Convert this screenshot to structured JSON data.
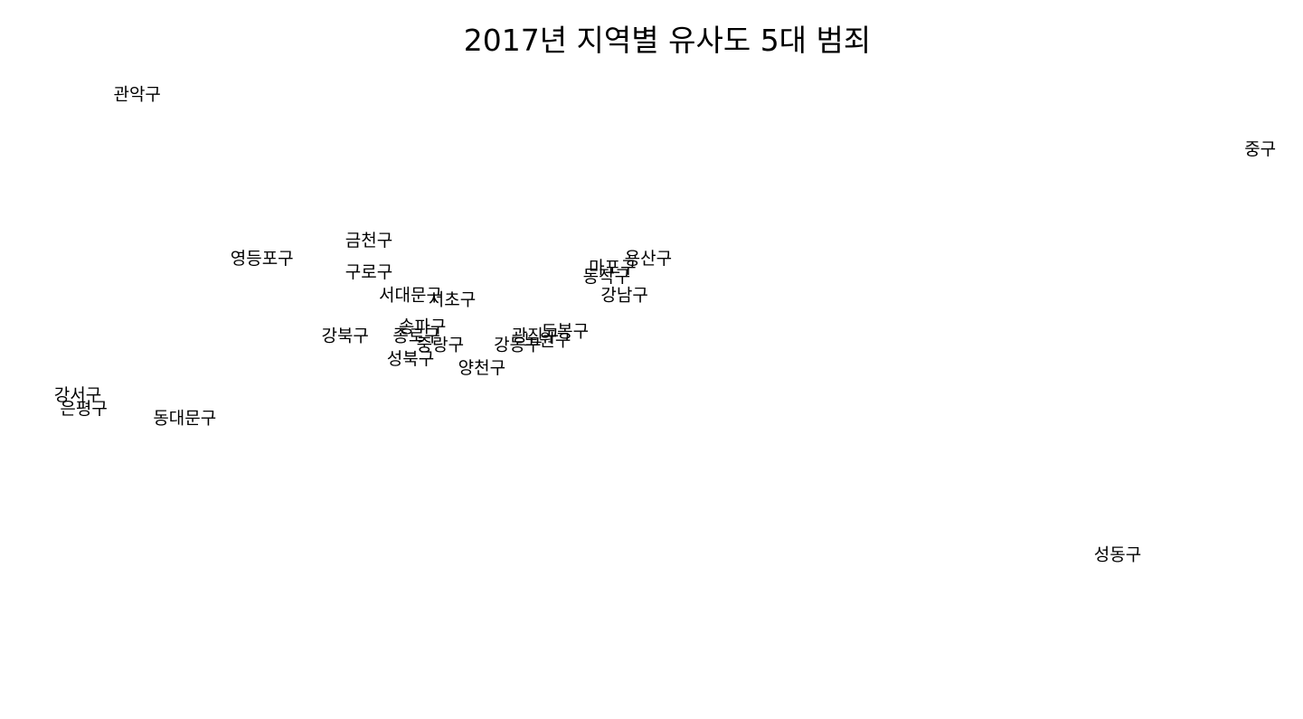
{
  "chart_data": {
    "type": "scatter",
    "title": "2017년 지역별 유사도 5대 범죄",
    "xlabel": "",
    "ylabel": "",
    "grid": false,
    "axes_visible": false,
    "xlim": [
      -0.9,
      1.2
    ],
    "ylim": [
      -0.8,
      0.6
    ],
    "points": [
      {
        "label": "관악구",
        "x": -0.73,
        "y": 0.54
      },
      {
        "label": "중구",
        "x": 1.16,
        "y": 0.42
      },
      {
        "label": "금천구",
        "x": -0.34,
        "y": 0.22
      },
      {
        "label": "영등포구",
        "x": -0.52,
        "y": 0.18
      },
      {
        "label": "용산구",
        "x": 0.13,
        "y": 0.18
      },
      {
        "label": "마포구",
        "x": 0.07,
        "y": 0.16
      },
      {
        "label": "구로구",
        "x": -0.34,
        "y": 0.15
      },
      {
        "label": "동작구",
        "x": 0.06,
        "y": 0.14
      },
      {
        "label": "강남구",
        "x": 0.09,
        "y": 0.1
      },
      {
        "label": "서대문구",
        "x": -0.27,
        "y": 0.1
      },
      {
        "label": "서초구",
        "x": -0.2,
        "y": 0.09
      },
      {
        "label": "송파구",
        "x": -0.25,
        "y": 0.03
      },
      {
        "label": "도봉구",
        "x": -0.01,
        "y": 0.02
      },
      {
        "label": "강북구",
        "x": -0.38,
        "y": 0.01
      },
      {
        "label": "종로구",
        "x": -0.26,
        "y": 0.01
      },
      {
        "label": "광진구",
        "x": -0.06,
        "y": 0.01
      },
      {
        "label": "노원구",
        "x": -0.04,
        "y": 0.0
      },
      {
        "label": "중랑구",
        "x": -0.22,
        "y": -0.01
      },
      {
        "label": "강동구",
        "x": -0.09,
        "y": -0.01
      },
      {
        "label": "성북구",
        "x": -0.27,
        "y": -0.04
      },
      {
        "label": "양천구",
        "x": -0.15,
        "y": -0.06
      },
      {
        "label": "강서구",
        "x": -0.83,
        "y": -0.12
      },
      {
        "label": "은평구",
        "x": -0.82,
        "y": -0.15
      },
      {
        "label": "동대문구",
        "x": -0.65,
        "y": -0.17
      },
      {
        "label": "성동구",
        "x": 0.92,
        "y": -0.47
      }
    ]
  }
}
